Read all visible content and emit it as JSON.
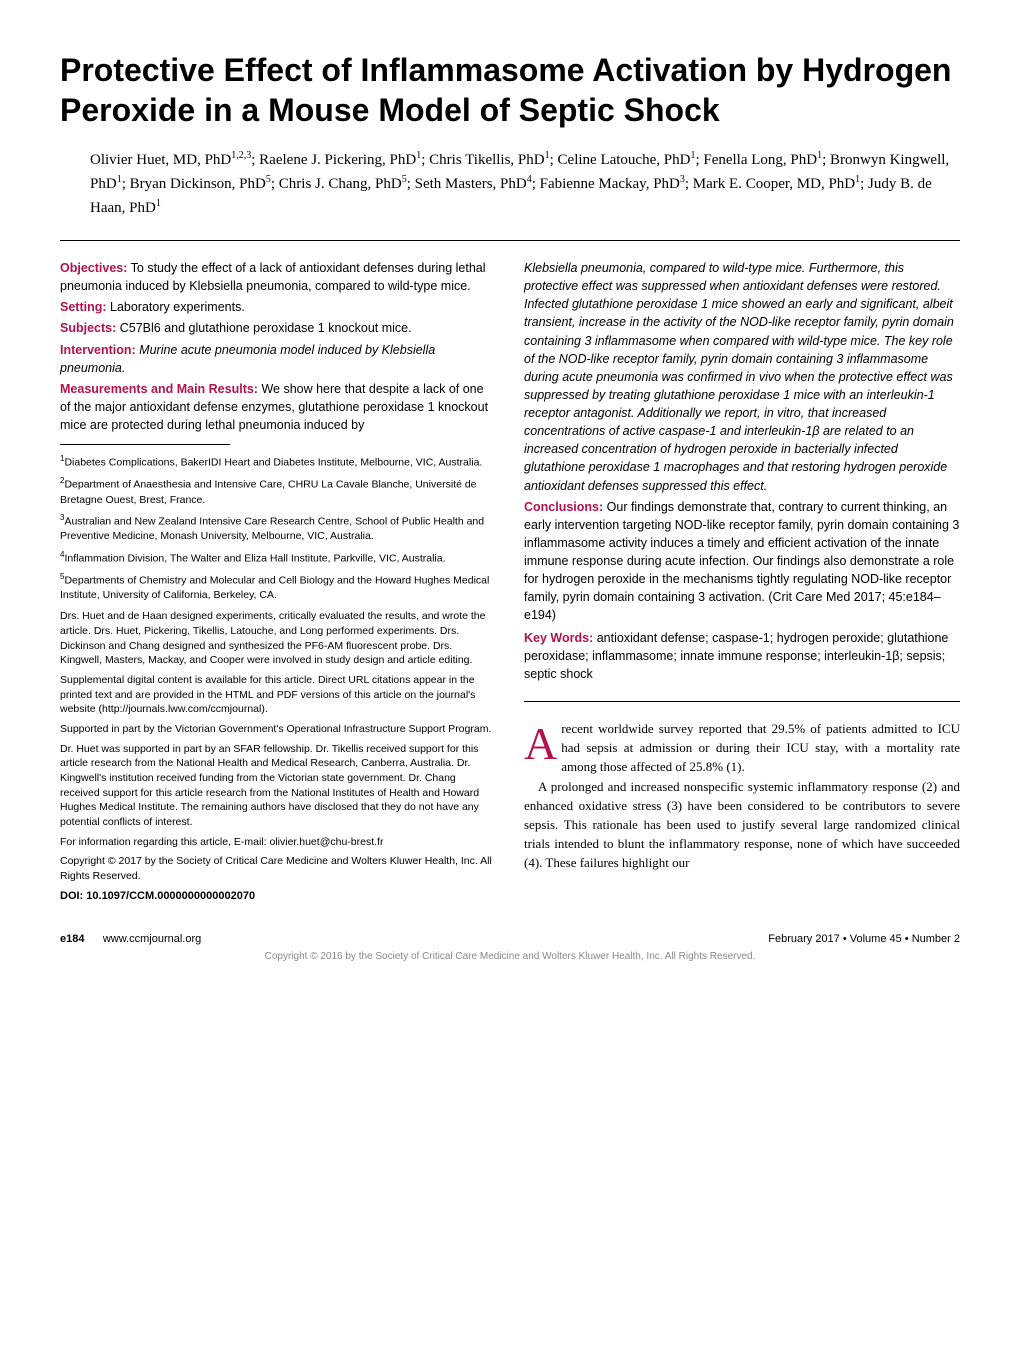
{
  "title": "Protective Effect of Inflammasome Activation by Hydrogen Peroxide in a Mouse Model of Septic Shock",
  "authors_html": "Olivier Huet, MD, PhD<sup>1,2,3</sup>; Raelene J. Pickering, PhD<sup>1</sup>; Chris Tikellis, PhD<sup>1</sup>; Celine Latouche, PhD<sup>1</sup>; Fenella Long, PhD<sup>1</sup>; Bronwyn Kingwell, PhD<sup>1</sup>; Bryan Dickinson, PhD<sup>5</sup>; Chris J. Chang, PhD<sup>5</sup>; Seth Masters, PhD<sup>4</sup>; Fabienne Mackay, PhD<sup>3</sup>; Mark E. Cooper, MD, PhD<sup>1</sup>; Judy B. de Haan, PhD<sup>1</sup>",
  "abstract": {
    "objectives": {
      "label": "Objectives:",
      "text": " To study the effect of a lack of antioxidant defenses during lethal pneumonia induced by Klebsiella pneumonia, compared to wild-type mice."
    },
    "setting": {
      "label": "Setting:",
      "text": " Laboratory experiments."
    },
    "subjects": {
      "label": "Subjects:",
      "text": " C57Bl6 and glutathione peroxidase 1 knockout mice."
    },
    "intervention": {
      "label": "Intervention:",
      "text": " Murine acute pneumonia model induced by Klebsiella pneumonia."
    },
    "measurements": {
      "label": "Measurements and Main Results:",
      "text": " We show here that despite a lack of one of the major antioxidant defense enzymes, glutathione peroxidase 1 knockout mice are protected during lethal pneumonia induced by"
    },
    "results_cont": "Klebsiella pneumonia, compared to wild-type mice. Furthermore, this protective effect was suppressed when antioxidant defenses were restored. Infected glutathione peroxidase 1 mice showed an early and significant, albeit transient, increase in the activity of the NOD-like receptor family, pyrin domain containing 3 inflammasome when compared with wild-type mice. The key role of the NOD-like receptor family, pyrin domain containing 3 inflammasome during acute pneumonia was confirmed in vivo when the protective effect was suppressed by treating glutathione peroxidase 1 mice with an interleukin-1 receptor antagonist. Additionally we report, in vitro, that increased concentrations of active caspase-1 and interleukin-1β are related to an increased concentration of hydrogen peroxide in bacterially infected glutathione peroxidase 1 macrophages and that restoring hydrogen peroxide antioxidant defenses suppressed this effect.",
    "conclusions": {
      "label": "Conclusions:",
      "text": " Our findings demonstrate that, contrary to current thinking, an early intervention targeting NOD-like receptor family, pyrin domain containing 3 inflammasome activity induces a timely and efficient activation of the innate immune response during acute infection. Our findings also demonstrate a role for hydrogen peroxide in the mechanisms tightly regulating NOD-like receptor family, pyrin domain containing 3 activation. (Crit Care Med 2017; 45:e184–e194)"
    },
    "keywords": {
      "label": "Key Words:",
      "text": " antioxidant defense; caspase-1; hydrogen peroxide; glutathione peroxidase; inflammasome; innate immune response; interleukin-1β; sepsis; septic shock"
    }
  },
  "affiliations": [
    "<sup>1</sup>Diabetes Complications, BakerIDI Heart and Diabetes Institute, Melbourne, VIC, Australia.",
    "<sup>2</sup>Department of Anaesthesia and Intensive Care, CHRU La Cavale Blanche, Université de Bretagne Ouest, Brest, France.",
    "<sup>3</sup>Australian and New Zealand Intensive Care Research Centre, School of Public Health and Preventive Medicine, Monash University, Melbourne, VIC, Australia.",
    "<sup>4</sup>Inflammation Division, The Walter and Eliza Hall Institute, Parkville, VIC, Australia.",
    "<sup>5</sup>Departments of Chemistry and Molecular and Cell Biology and the Howard Hughes Medical Institute, University of California, Berkeley, CA."
  ],
  "notes": [
    "Drs. Huet and de Haan designed experiments, critically evaluated the results, and wrote the article. Drs. Huet, Pickering, Tikellis, Latouche, and Long performed experiments. Drs. Dickinson and Chang designed and synthesized the PF6-AM fluorescent probe. Drs. Kingwell, Masters, Mackay, and Cooper were involved in study design and article editing.",
    "Supplemental digital content is available for this article. Direct URL citations appear in the printed text and are provided in the HTML and PDF versions of this article on the journal's website (http://journals.lww.com/ccmjournal).",
    "Supported in part by the Victorian Government's Operational Infrastructure Support Program.",
    "Dr. Huet was supported in part by an SFAR fellowship. Dr. Tikellis received support for this article research from the National Health and Medical Research, Canberra, Australia. Dr. Kingwell's institution received funding from the Victorian state government. Dr. Chang received support for this article research from the National Institutes of Health and Howard Hughes Medical Institute. The remaining authors have disclosed that they do not have any potential conflicts of interest.",
    "For information regarding this article, E-mail: olivier.huet@chu-brest.fr",
    "Copyright © 2017 by the Society of Critical Care Medicine and Wolters Kluwer Health, Inc. All Rights Reserved."
  ],
  "doi": "DOI: 10.1097/CCM.0000000000002070",
  "body": {
    "dropcap": "A",
    "p1_rest": "recent worldwide survey reported that 29.5% of patients admitted to ICU had sepsis at admission or during their ICU stay, with a mortality rate among those affected of 25.8% (1).",
    "p2": "A prolonged and increased nonspecific systemic inflammatory response (2) and enhanced oxidative stress (3) have been considered to be contributors to severe sepsis. This rationale has been used to justify several large randomized clinical trials intended to blunt the inflammatory response, none of which have succeeded (4). These failures highlight our"
  },
  "footer": {
    "page": "e184",
    "url": "www.ccmjournal.org",
    "issue": "February 2017 • Volume 45 • Number 2"
  },
  "copyright_line": "Copyright © 2016 by the Society of Critical Care Medicine and Wolters Kluwer Health, Inc. All Rights Reserved.",
  "colors": {
    "accent": "#b4124c",
    "text": "#000000",
    "background": "#ffffff",
    "copyright": "#888888"
  },
  "typography": {
    "title_fontsize": 32,
    "author_fontsize": 15,
    "abstract_fontsize": 12.5,
    "affil_fontsize": 10.5,
    "body_fontsize": 13,
    "footer_fontsize": 11
  }
}
